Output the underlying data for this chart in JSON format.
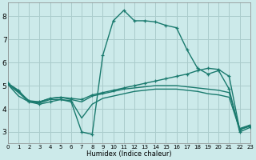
{
  "bg_color": "#cceaea",
  "grid_color": "#aacccc",
  "line_color": "#1a7a6e",
  "xlabel": "Humidex (Indice chaleur)",
  "xlim": [
    0,
    23
  ],
  "ylim": [
    2.5,
    8.6
  ],
  "yticks": [
    3,
    4,
    5,
    6,
    7,
    8
  ],
  "xticks": [
    0,
    1,
    2,
    3,
    4,
    5,
    6,
    7,
    8,
    9,
    10,
    11,
    12,
    13,
    14,
    15,
    16,
    17,
    18,
    19,
    20,
    21,
    22,
    23
  ],
  "lines": [
    {
      "x": [
        0,
        1,
        2,
        3,
        4,
        5,
        6,
        7,
        8,
        9,
        10,
        11,
        12,
        13,
        14,
        15,
        16,
        17,
        18,
        19,
        20,
        21,
        22,
        23
      ],
      "y": [
        5.1,
        4.8,
        4.3,
        4.2,
        4.3,
        4.4,
        4.3,
        3.0,
        2.9,
        6.3,
        7.8,
        8.25,
        7.8,
        7.8,
        7.75,
        7.6,
        7.5,
        6.55,
        5.75,
        5.5,
        5.65,
        4.85,
        3.0,
        3.2
      ],
      "marker": true,
      "lw": 1.0
    },
    {
      "x": [
        0,
        1,
        2,
        3,
        4,
        5,
        6,
        7,
        8,
        9,
        10,
        11,
        12,
        13,
        14,
        15,
        16,
        17,
        18,
        19,
        20,
        21,
        22,
        23
      ],
      "y": [
        5.05,
        4.55,
        4.3,
        4.3,
        4.45,
        4.5,
        4.4,
        4.3,
        4.55,
        4.65,
        4.75,
        4.85,
        4.9,
        4.95,
        5.0,
        5.0,
        5.0,
        4.95,
        4.9,
        4.85,
        4.8,
        4.7,
        3.15,
        3.3
      ],
      "marker": false,
      "lw": 1.0
    },
    {
      "x": [
        0,
        1,
        2,
        3,
        4,
        5,
        6,
        7,
        8,
        9,
        10,
        11,
        12,
        13,
        14,
        15,
        16,
        17,
        18,
        19,
        20,
        21,
        22,
        23
      ],
      "y": [
        5.1,
        4.75,
        4.35,
        4.3,
        4.45,
        4.5,
        4.45,
        4.4,
        4.6,
        4.7,
        4.8,
        4.9,
        5.0,
        5.1,
        5.2,
        5.3,
        5.4,
        5.5,
        5.65,
        5.75,
        5.7,
        5.4,
        3.1,
        3.25
      ],
      "marker": true,
      "lw": 1.0
    },
    {
      "x": [
        0,
        1,
        2,
        3,
        4,
        5,
        6,
        7,
        8,
        9,
        10,
        11,
        12,
        13,
        14,
        15,
        16,
        17,
        18,
        19,
        20,
        21,
        22,
        23
      ],
      "y": [
        5.05,
        4.7,
        4.3,
        4.25,
        4.4,
        4.4,
        4.35,
        3.6,
        4.2,
        4.45,
        4.55,
        4.65,
        4.75,
        4.8,
        4.85,
        4.85,
        4.85,
        4.8,
        4.75,
        4.65,
        4.6,
        4.5,
        3.1,
        3.3
      ],
      "marker": false,
      "lw": 1.0
    }
  ]
}
